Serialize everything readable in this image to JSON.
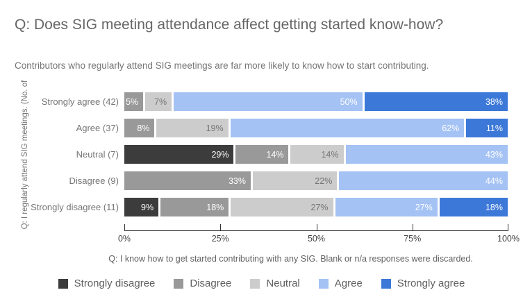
{
  "header": {
    "title": "Q: Does SIG meeting attendance affect getting started know-how?",
    "subtitle": "Contributors who regularly attend SIG meetings are far more likely to know how to start contributing."
  },
  "chart_data": {
    "type": "bar",
    "orientation": "horizontal",
    "stacked": true,
    "unit": "%",
    "categories": [
      "Strongly agree (42)",
      "Agree (37)",
      "Neutral (7)",
      "Disagree (9)",
      "Strongly disagree (11)"
    ],
    "series": [
      {
        "name": "Strongly disagree",
        "color": "#3c3c3c",
        "label_color": "#ffffff",
        "values": [
          0,
          0,
          29,
          0,
          9
        ]
      },
      {
        "name": "Disagree",
        "color": "#999999",
        "label_color": "#ffffff",
        "values": [
          5,
          8,
          14,
          33,
          18
        ]
      },
      {
        "name": "Neutral",
        "color": "#cccccc",
        "label_color": "#757575",
        "values": [
          7,
          19,
          14,
          22,
          27
        ]
      },
      {
        "name": "Agree",
        "color": "#a4c2f4",
        "label_color": "#ffffff",
        "values": [
          50,
          62,
          43,
          44,
          27
        ]
      },
      {
        "name": "Strongly agree",
        "color": "#3c78d8",
        "label_color": "#ffffff",
        "values": [
          38,
          11,
          0,
          0,
          18
        ]
      }
    ],
    "ylabel": "Q: I regularly attend SIG meetings. (No. of",
    "xlabel": "",
    "x_ticks": [
      "0%",
      "25%",
      "50%",
      "75%",
      "100%"
    ],
    "xlim": [
      0,
      100
    ],
    "grid": false,
    "legend_position": "bottom",
    "footnote": "Q: I know how to get started contributing with any SIG. Blank or n/a responses were discarded."
  }
}
